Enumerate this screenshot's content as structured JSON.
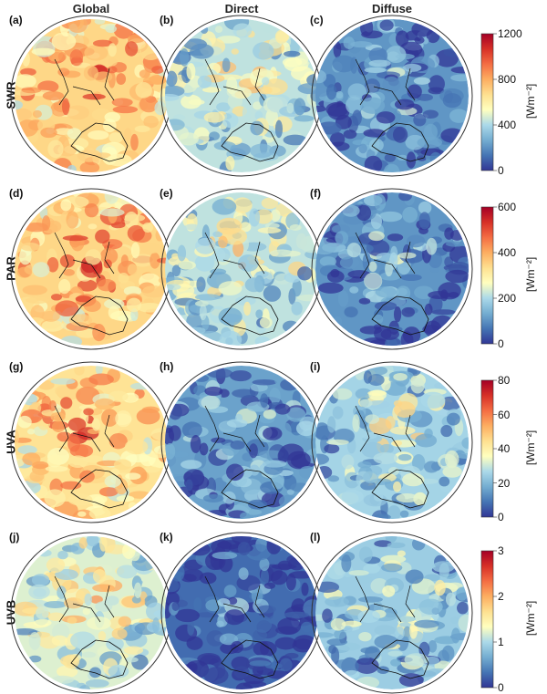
{
  "columns": [
    "Global",
    "Direct",
    "Diffuse"
  ],
  "rows": [
    {
      "label": "SWR",
      "panels": [
        "(a)",
        "(b)",
        "(c)"
      ],
      "ticks": [
        "0",
        "400",
        "800",
        "1200"
      ],
      "unit": "[Wm⁻²]",
      "vmax": 1200,
      "means": [
        0.72,
        0.45,
        0.22
      ]
    },
    {
      "label": "PAR",
      "panels": [
        "(d)",
        "(e)",
        "(f)"
      ],
      "ticks": [
        "0",
        "200",
        "400",
        "600"
      ],
      "unit": "[Wm⁻²]",
      "vmax": 600,
      "means": [
        0.72,
        0.45,
        0.22
      ]
    },
    {
      "label": "UVA",
      "panels": [
        "(g)",
        "(h)",
        "(i)"
      ],
      "ticks": [
        "0",
        "20",
        "40",
        "60",
        "80"
      ],
      "unit": "[Wm⁻²]",
      "vmax": 80,
      "means": [
        0.68,
        0.25,
        0.4
      ]
    },
    {
      "label": "UVB",
      "panels": [
        "(j)",
        "(k)",
        "(l)"
      ],
      "ticks": [
        "0",
        "1",
        "2",
        "3"
      ],
      "unit": "[Wm⁻²]",
      "vmax": 3,
      "means": [
        0.5,
        0.12,
        0.38
      ]
    }
  ],
  "colormap": [
    "#313695",
    "#4575b4",
    "#74add1",
    "#abd9e9",
    "#ffffbf",
    "#fee090",
    "#fdae61",
    "#f46d43",
    "#d73027",
    "#a50026"
  ]
}
